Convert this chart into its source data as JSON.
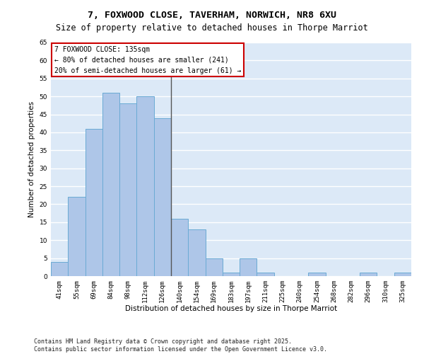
{
  "title_line1": "7, FOXWOOD CLOSE, TAVERHAM, NORWICH, NR8 6XU",
  "title_line2": "Size of property relative to detached houses in Thorpe Marriot",
  "xlabel": "Distribution of detached houses by size in Thorpe Marriot",
  "ylabel": "Number of detached properties",
  "bin_labels": [
    "41sqm",
    "55sqm",
    "69sqm",
    "84sqm",
    "98sqm",
    "112sqm",
    "126sqm",
    "140sqm",
    "154sqm",
    "169sqm",
    "183sqm",
    "197sqm",
    "211sqm",
    "225sqm",
    "240sqm",
    "254sqm",
    "268sqm",
    "282sqm",
    "296sqm",
    "310sqm",
    "325sqm"
  ],
  "bin_values": [
    4,
    22,
    41,
    51,
    48,
    50,
    44,
    16,
    13,
    5,
    1,
    5,
    1,
    0,
    0,
    1,
    0,
    0,
    1,
    0,
    1
  ],
  "bar_color": "#aec6e8",
  "bar_edge_color": "#6aaad4",
  "vline_color": "#555555",
  "ylim": [
    0,
    65
  ],
  "yticks": [
    0,
    5,
    10,
    15,
    20,
    25,
    30,
    35,
    40,
    45,
    50,
    55,
    60,
    65
  ],
  "annotation_text": "7 FOXWOOD CLOSE: 135sqm\n← 80% of detached houses are smaller (241)\n20% of semi-detached houses are larger (61) →",
  "annotation_box_color": "#ffffff",
  "annotation_border_color": "#cc0000",
  "background_color": "#dce9f7",
  "plot_bg_color": "#dce9f7",
  "fig_bg_color": "#ffffff",
  "grid_color": "#ffffff",
  "footer_text": "Contains HM Land Registry data © Crown copyright and database right 2025.\nContains public sector information licensed under the Open Government Licence v3.0.",
  "title_fontsize": 9.5,
  "subtitle_fontsize": 8.5,
  "axis_label_fontsize": 7.5,
  "tick_fontsize": 6.5,
  "annotation_fontsize": 7,
  "footer_fontsize": 6
}
